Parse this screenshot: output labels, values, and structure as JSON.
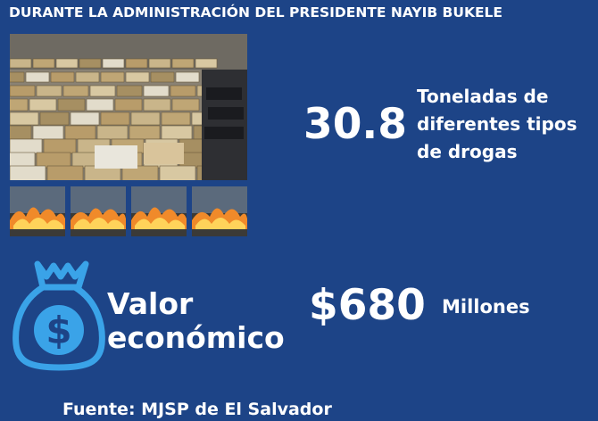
{
  "header": {
    "title": "DURANTE LA ADMINISTRACIÓN DEL PRESIDENTE NAYIB BUKELE"
  },
  "drugs": {
    "value": "30.8",
    "description_lines": [
      "Toneladas de",
      "diferentes tipos",
      "de drogas"
    ],
    "photo_icon": "seized-drug-packages-photo",
    "fire_icons": [
      "drug-burning-photo",
      "drug-burning-photo",
      "drug-burning-photo",
      "drug-burning-photo"
    ]
  },
  "value": {
    "label_lines": [
      "Valor",
      "económico"
    ],
    "amount": "$680",
    "unit": "Millones",
    "icon": "money-bag-icon"
  },
  "footer": {
    "source": "Fuente: MJSP de El Salvador"
  },
  "colors": {
    "background": "#1d4487",
    "text": "#ffffff",
    "icon": "#3aa3e8"
  }
}
